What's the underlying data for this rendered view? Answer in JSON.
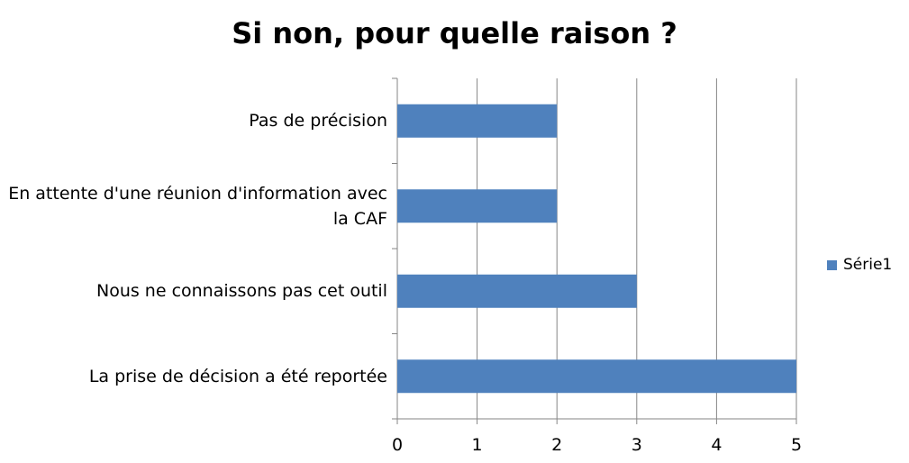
{
  "chart_data": {
    "type": "bar",
    "orientation": "horizontal",
    "title": "Si non, pour quelle raison ?",
    "categories": [
      "Pas de précision",
      "En attente d'une réunion d'information avec la CAF",
      "Nous ne connaissons pas cet outil",
      "La prise de décision a été reportée"
    ],
    "series": [
      {
        "name": "Série1",
        "values": [
          2,
          2,
          3,
          5
        ],
        "color": "#4F81BD"
      }
    ],
    "xlim": [
      0,
      5
    ],
    "xticks": [
      "0",
      "1",
      "2",
      "3",
      "4",
      "5"
    ],
    "grid": true,
    "legend_position": "right"
  }
}
